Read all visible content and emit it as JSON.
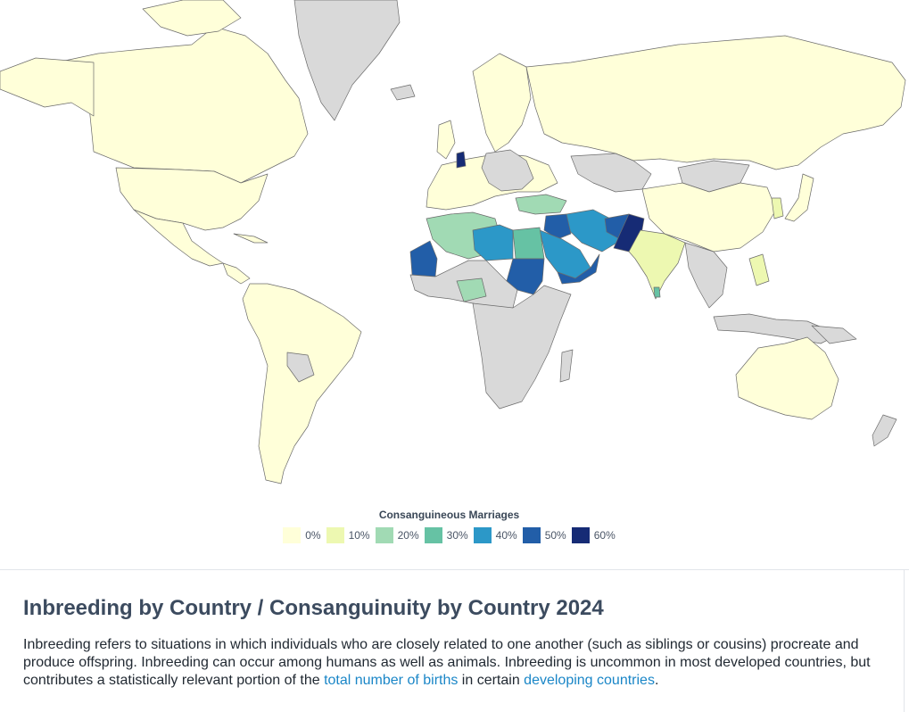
{
  "map": {
    "legend_title": "Consanguineous Marriages",
    "legend": [
      {
        "label": "0%",
        "color": "#ffffd9"
      },
      {
        "label": "10%",
        "color": "#edf8b1"
      },
      {
        "label": "20%",
        "color": "#a1dab4"
      },
      {
        "label": "30%",
        "color": "#66c2a4"
      },
      {
        "label": "40%",
        "color": "#2c98c8"
      },
      {
        "label": "50%",
        "color": "#225ea8"
      },
      {
        "label": "60%",
        "color": "#162b75"
      }
    ],
    "no_data_color": "#d9d9d9"
  },
  "article": {
    "title": "Inbreeding by Country / Consanguinuity by Country 2024",
    "p_part1": "Inbreeding refers to situations in which individuals who are closely related to one another (such as siblings or cousins) procreate and produce offspring. Inbreeding can occur among humans as well as animals. Inbreeding is uncommon in most developed countries, but contributes a statistically relevant portion of the ",
    "link1": "total number of births",
    "p_part2": " in certain ",
    "link2": "developing countries",
    "p_end": "."
  }
}
